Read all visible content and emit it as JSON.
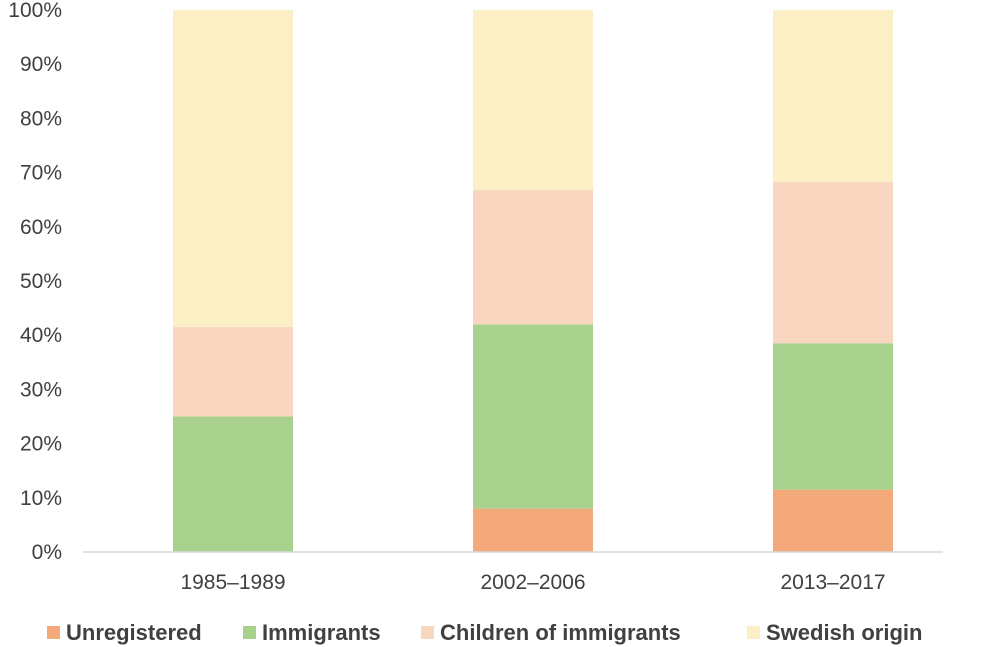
{
  "chart_data": {
    "type": "bar",
    "stacked": true,
    "title": "",
    "xlabel": "",
    "ylabel": "",
    "ylim": [
      0,
      100
    ],
    "y_ticks": [
      "0%",
      "10%",
      "20%",
      "30%",
      "40%",
      "50%",
      "60%",
      "70%",
      "80%",
      "90%",
      "100%"
    ],
    "grid": false,
    "legend_position": "bottom",
    "categories": [
      "1985–1989",
      "2002–2006",
      "2013–2017"
    ],
    "series": [
      {
        "name": "Unregistered",
        "color": "#f4a97a",
        "values": [
          0,
          8,
          11.5
        ]
      },
      {
        "name": "Immigrants",
        "color": "#a9d18e",
        "values": [
          25,
          34,
          27
        ]
      },
      {
        "name": "Children of immigrants",
        "color": "#f8d6c0",
        "values": [
          16.5,
          24.8,
          29.8
        ]
      },
      {
        "name": "Swedish origin",
        "color": "#fcefc6",
        "values": [
          58.5,
          33.2,
          31.7
        ]
      }
    ]
  }
}
